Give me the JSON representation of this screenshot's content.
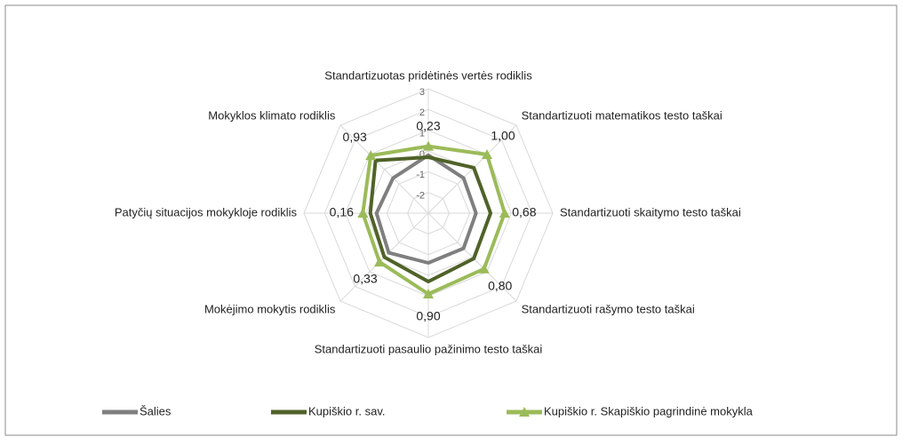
{
  "chart_data": {
    "type": "radar",
    "categories": [
      "Standartizuotas pridėtinės vertės rodiklis",
      "Standartizuoti matematikos testo taškai",
      "Standartizuoti skaitymo testo taškai",
      "Standartizuoti rašymo testo taškai",
      "Standartizuoti pasaulio pažinimo testo taškai",
      "Mokėjimo mokytis rodiklis",
      "Patyčių situacijos mokykloje rodiklis",
      "Mokyklos klimato rodiklis"
    ],
    "ylim": [
      -3,
      3
    ],
    "yticks": [
      -2,
      -1,
      0,
      1,
      2,
      3
    ],
    "grid": true,
    "series": [
      {
        "name": "Šalies",
        "color": "#7f7f7f",
        "values": [
          -0.2,
          -0.6,
          -0.7,
          -0.6,
          -0.6,
          -0.3,
          -0.5,
          -0.6
        ]
      },
      {
        "name": "Kupiškio r. sav.",
        "color": "#4f6228",
        "values": [
          -0.3,
          0.1,
          0.0,
          0.1,
          0.3,
          0.0,
          -0.2,
          0.6
        ]
      },
      {
        "name": "Kupiškio r. Skapiškio pagrindinė mokykla",
        "color": "#9bbb59",
        "values": [
          0.23,
          1.0,
          0.68,
          0.8,
          0.9,
          0.33,
          0.16,
          0.93
        ],
        "value_labels": [
          "0,23",
          "1,00",
          "0,68",
          "0,80",
          "0,90",
          "0,33",
          "0,16",
          "0,93"
        ]
      }
    ]
  }
}
